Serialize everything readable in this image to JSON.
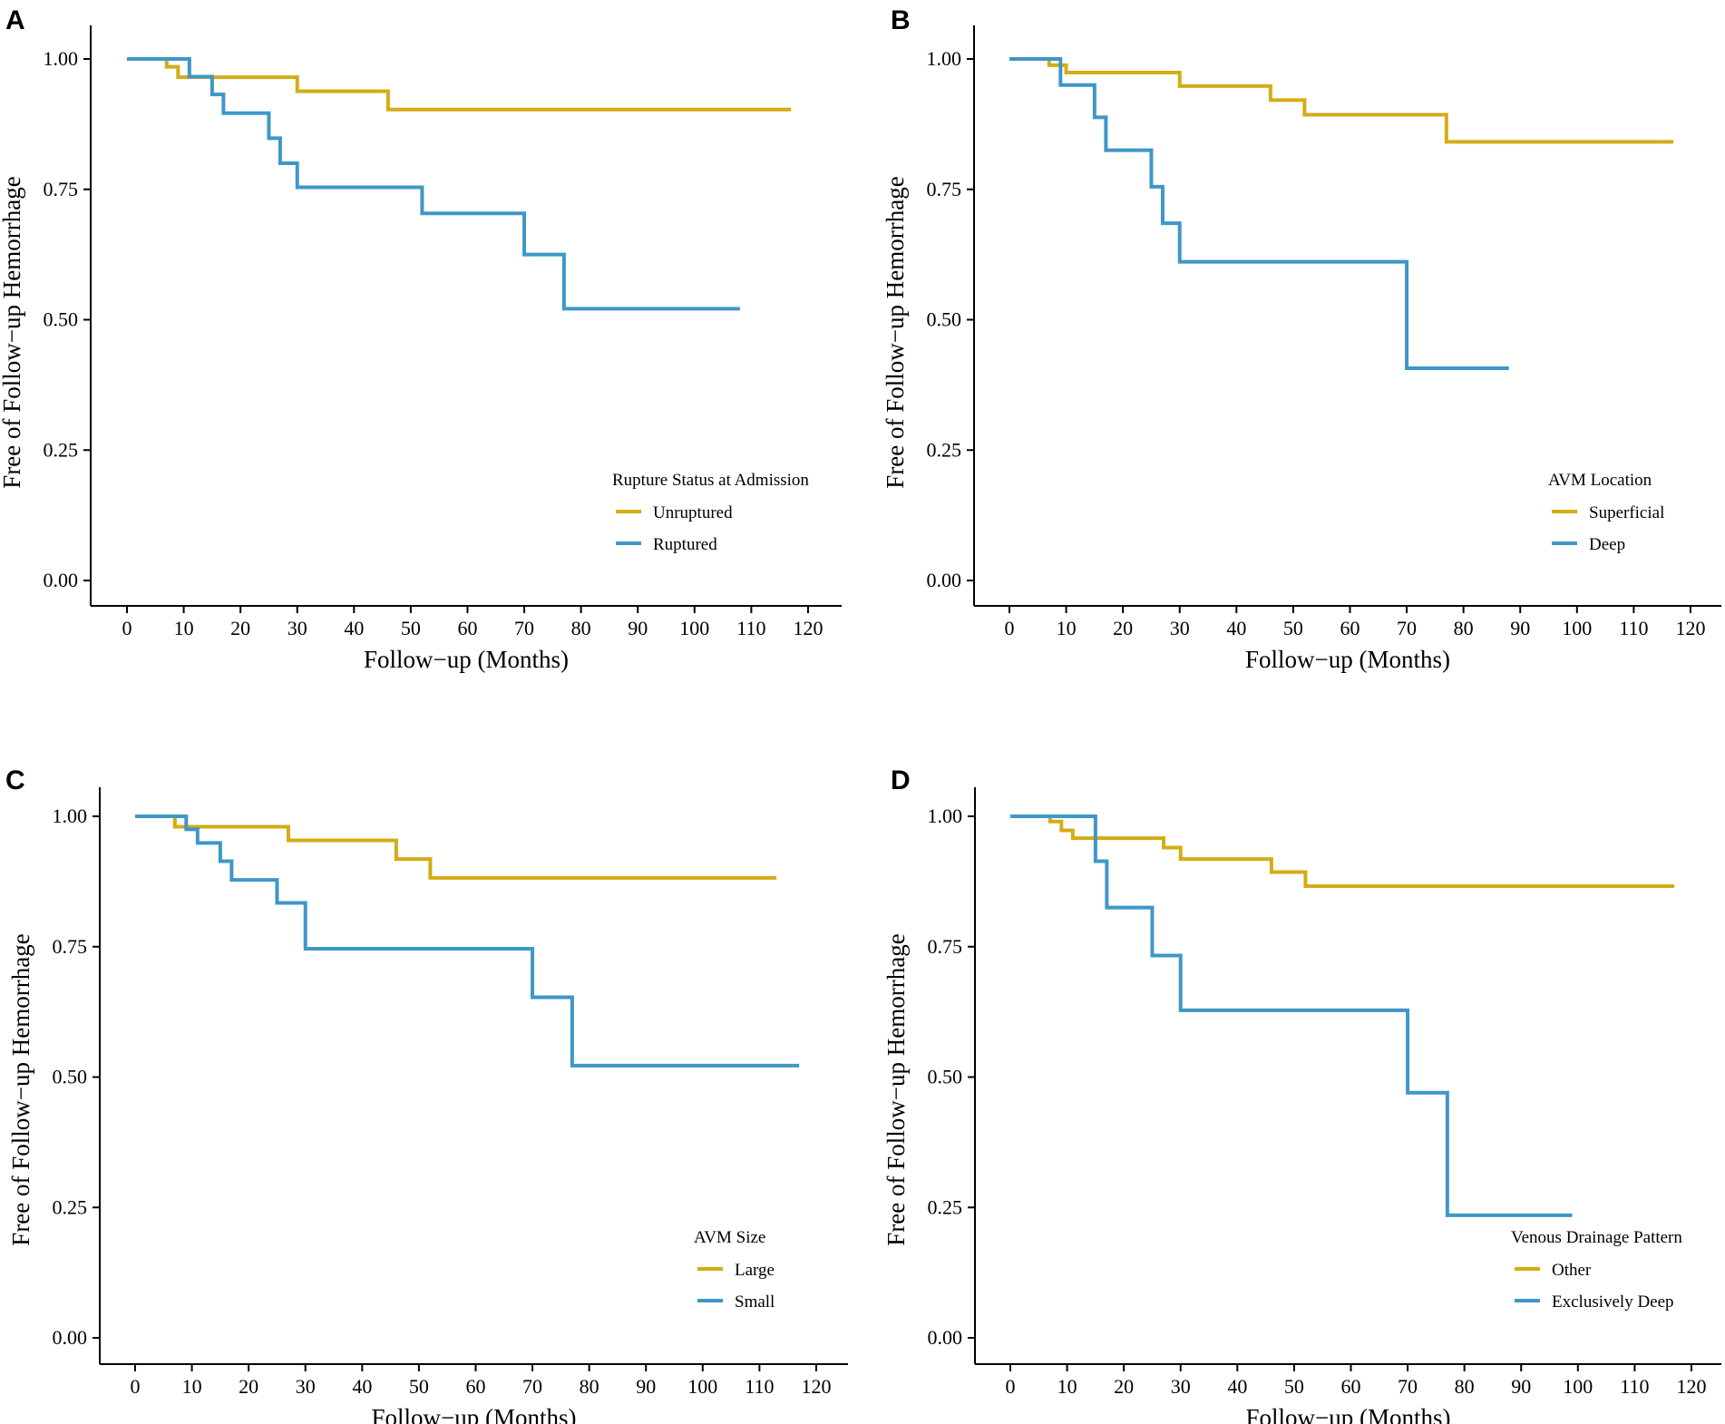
{
  "figure": {
    "panels": [
      "A",
      "B",
      "C",
      "D"
    ]
  },
  "chart_data": [
    {
      "panel": "A",
      "type": "line",
      "step": true,
      "xlabel": "Follow−up (Months)",
      "ylabel": "Free of Follow−up Hemorrhage",
      "xlim": [
        0,
        120
      ],
      "ylim": [
        0,
        1
      ],
      "x_ticks": [
        "0",
        "10",
        "20",
        "30",
        "40",
        "50",
        "60",
        "70",
        "80",
        "90",
        "100",
        "110",
        "120"
      ],
      "y_ticks": [
        "0.00",
        "0.25",
        "0.50",
        "0.75",
        "1.00"
      ],
      "legend": {
        "title": "Rupture Status at Admission",
        "placement": "bottom-right"
      },
      "series": [
        {
          "name": "Unruptured",
          "color": "#d4ac15",
          "points": [
            [
              0,
              1.0
            ],
            [
              7,
              0.985
            ],
            [
              9,
              0.965
            ],
            [
              30,
              0.938
            ],
            [
              46,
              0.903
            ],
            [
              117,
              0.903
            ]
          ]
        },
        {
          "name": "Ruptured",
          "color": "#3f97c7",
          "points": [
            [
              0,
              1.0
            ],
            [
              11,
              0.966
            ],
            [
              15,
              0.932
            ],
            [
              17,
              0.896
            ],
            [
              25,
              0.848
            ],
            [
              27,
              0.8
            ],
            [
              30,
              0.754
            ],
            [
              52,
              0.704
            ],
            [
              70,
              0.625
            ],
            [
              77,
              0.521
            ],
            [
              108,
              0.521
            ]
          ]
        }
      ]
    },
    {
      "panel": "B",
      "type": "line",
      "step": true,
      "xlabel": "Follow−up (Months)",
      "ylabel": "Free of Follow−up Hemorrhage",
      "xlim": [
        0,
        120
      ],
      "ylim": [
        0,
        1
      ],
      "x_ticks": [
        "0",
        "10",
        "20",
        "30",
        "40",
        "50",
        "60",
        "70",
        "80",
        "90",
        "100",
        "110",
        "120"
      ],
      "y_ticks": [
        "0.00",
        "0.25",
        "0.50",
        "0.75",
        "1.00"
      ],
      "legend": {
        "title": "AVM Location",
        "placement": "bottom-right"
      },
      "series": [
        {
          "name": "Superficial",
          "color": "#d4ac15",
          "points": [
            [
              0,
              1.0
            ],
            [
              7,
              0.988
            ],
            [
              10,
              0.974
            ],
            [
              30,
              0.948
            ],
            [
              46,
              0.921
            ],
            [
              52,
              0.893
            ],
            [
              77,
              0.841
            ],
            [
              117,
              0.841
            ]
          ]
        },
        {
          "name": "Deep",
          "color": "#3f97c7",
          "points": [
            [
              0,
              1.0
            ],
            [
              9,
              0.95
            ],
            [
              15,
              0.888
            ],
            [
              17,
              0.825
            ],
            [
              25,
              0.755
            ],
            [
              27,
              0.685
            ],
            [
              30,
              0.611
            ],
            [
              70,
              0.407
            ],
            [
              88,
              0.407
            ]
          ]
        }
      ]
    },
    {
      "panel": "C",
      "type": "line",
      "step": true,
      "xlabel": "Follow−up (Months)",
      "ylabel": "Free of Follow−up Hemorrhage",
      "xlim": [
        0,
        120
      ],
      "ylim": [
        0,
        1
      ],
      "x_ticks": [
        "0",
        "10",
        "20",
        "30",
        "40",
        "50",
        "60",
        "70",
        "80",
        "90",
        "100",
        "110",
        "120"
      ],
      "y_ticks": [
        "0.00",
        "0.25",
        "0.50",
        "0.75",
        "1.00"
      ],
      "legend": {
        "title": "AVM Size",
        "placement": "bottom-right"
      },
      "series": [
        {
          "name": "Large",
          "color": "#d4ac15",
          "points": [
            [
              0,
              1.0
            ],
            [
              7,
              0.98
            ],
            [
              27,
              0.954
            ],
            [
              46,
              0.918
            ],
            [
              52,
              0.882
            ],
            [
              113,
              0.882
            ]
          ]
        },
        {
          "name": "Small",
          "color": "#3f97c7",
          "points": [
            [
              0,
              1.0
            ],
            [
              9,
              0.975
            ],
            [
              11,
              0.949
            ],
            [
              15,
              0.914
            ],
            [
              17,
              0.878
            ],
            [
              25,
              0.834
            ],
            [
              30,
              0.746
            ],
            [
              70,
              0.653
            ],
            [
              77,
              0.522
            ],
            [
              117,
              0.522
            ]
          ]
        }
      ]
    },
    {
      "panel": "D",
      "type": "line",
      "step": true,
      "xlabel": "Follow−up (Months)",
      "ylabel": "Free of Follow−up Hemorrhage",
      "xlim": [
        0,
        120
      ],
      "ylim": [
        0,
        1
      ],
      "x_ticks": [
        "0",
        "10",
        "20",
        "30",
        "40",
        "50",
        "60",
        "70",
        "80",
        "90",
        "100",
        "110",
        "120"
      ],
      "y_ticks": [
        "0.00",
        "0.25",
        "0.50",
        "0.75",
        "1.00"
      ],
      "legend": {
        "title": "Venous Drainage Pattern",
        "placement": "bottom-right"
      },
      "series": [
        {
          "name": "Other",
          "color": "#d4ac15",
          "points": [
            [
              0,
              1.0
            ],
            [
              7,
              0.99
            ],
            [
              9,
              0.973
            ],
            [
              11,
              0.958
            ],
            [
              27,
              0.94
            ],
            [
              30,
              0.918
            ],
            [
              46,
              0.893
            ],
            [
              52,
              0.866
            ],
            [
              117,
              0.866
            ]
          ]
        },
        {
          "name": "Exclusively Deep",
          "color": "#3f97c7",
          "points": [
            [
              0,
              1.0
            ],
            [
              15,
              0.914
            ],
            [
              17,
              0.825
            ],
            [
              25,
              0.733
            ],
            [
              30,
              0.628
            ],
            [
              70,
              0.47
            ],
            [
              77,
              0.235
            ],
            [
              99,
              0.235
            ]
          ]
        }
      ]
    }
  ]
}
